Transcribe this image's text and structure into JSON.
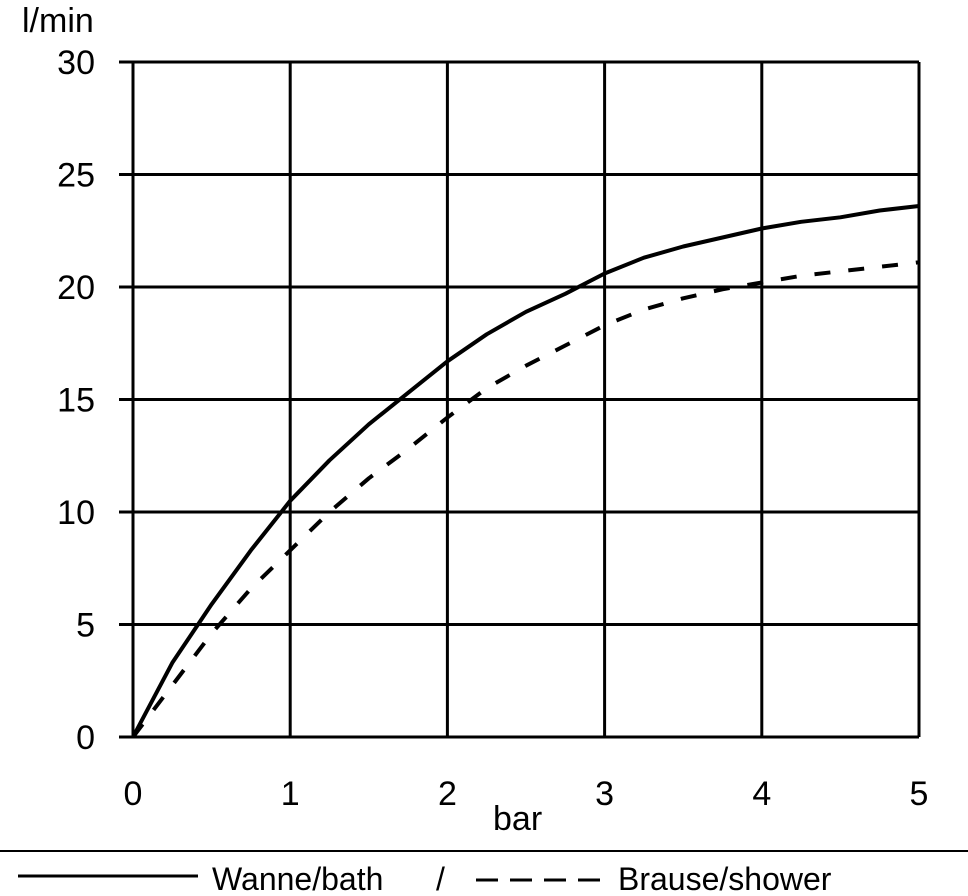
{
  "chart_data": {
    "type": "line",
    "title": "",
    "xlabel": "bar",
    "ylabel": "l/min",
    "xlim": [
      0,
      5
    ],
    "ylim": [
      0,
      30
    ],
    "x_ticks": [
      "0",
      "1",
      "2",
      "3",
      "4",
      "5"
    ],
    "y_ticks": [
      "0",
      "5",
      "10",
      "15",
      "20",
      "25",
      "30"
    ],
    "grid": true,
    "legend_position": "bottom",
    "legend": {
      "separator": "/",
      "entries": [
        "Wanne/bath",
        "Brause/shower"
      ]
    },
    "series": [
      {
        "name": "Wanne/bath",
        "style": "solid",
        "color": "#000000",
        "x": [
          0,
          0.25,
          0.5,
          0.75,
          1.0,
          1.25,
          1.5,
          1.75,
          2.0,
          2.25,
          2.5,
          2.75,
          3.0,
          3.25,
          3.5,
          3.75,
          4.0,
          4.25,
          4.5,
          4.75,
          5.0
        ],
        "y": [
          0,
          3.3,
          5.9,
          8.3,
          10.5,
          12.3,
          13.9,
          15.3,
          16.7,
          17.9,
          18.9,
          19.7,
          20.6,
          21.3,
          21.8,
          22.2,
          22.6,
          22.9,
          23.1,
          23.4,
          23.6
        ]
      },
      {
        "name": "Brause/shower",
        "style": "dashed",
        "color": "#000000",
        "x": [
          0,
          0.25,
          0.5,
          0.75,
          1.0,
          1.25,
          1.5,
          1.75,
          2.0,
          2.25,
          2.5,
          2.75,
          3.0,
          3.25,
          3.5,
          3.75,
          4.0,
          4.25,
          4.5,
          4.75,
          5.0
        ],
        "y": [
          0,
          2.3,
          4.6,
          6.6,
          8.3,
          10.0,
          11.5,
          12.8,
          14.2,
          15.5,
          16.5,
          17.4,
          18.3,
          19.0,
          19.5,
          19.9,
          20.2,
          20.5,
          20.7,
          20.9,
          21.1
        ]
      }
    ]
  }
}
